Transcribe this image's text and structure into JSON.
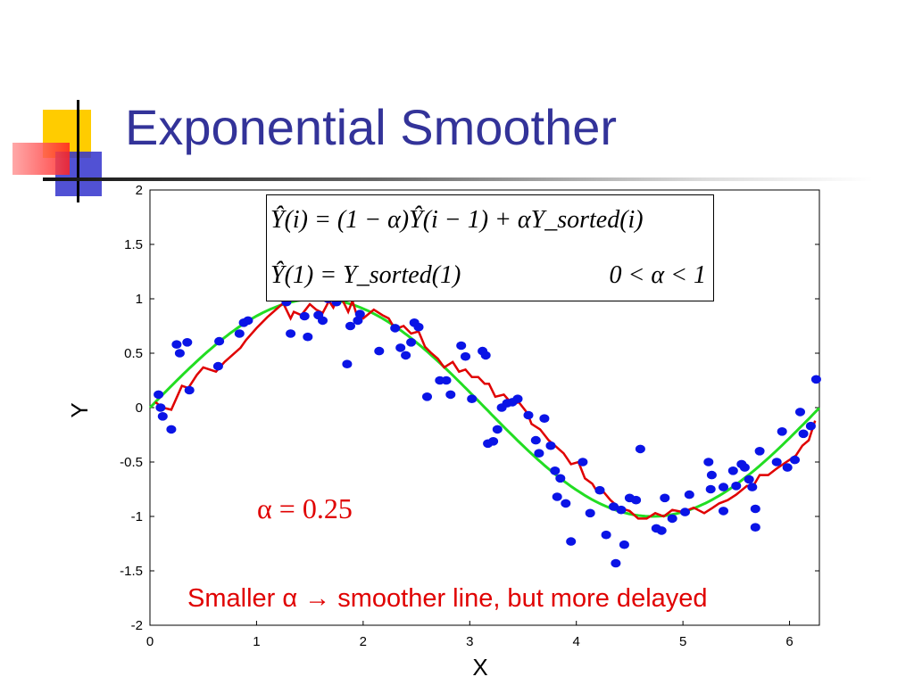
{
  "slide": {
    "title": "Exponential Smoother",
    "formula_line1": "Ŷ(i) = (1 − α)Ŷ(i − 1) + αY_sorted(i)",
    "formula_line2": "Ŷ(1) = Y_sorted(1)",
    "formula_constraint": "0 < α < 1",
    "alpha_label": "α = 0.25",
    "caption": "Smaller α → smoother line, but more delayed"
  },
  "colors": {
    "title": "#333399",
    "scatter": "#0a14e6",
    "smoothed": "#e00000",
    "true_curve": "#22dd22",
    "annotation": "#e00000"
  },
  "chart_data": {
    "type": "scatter",
    "xlabel": "X",
    "ylabel": "Y",
    "xlim": [
      0,
      6.28
    ],
    "ylim": [
      -2,
      2
    ],
    "xticks": [
      "0",
      "1",
      "2",
      "3",
      "4",
      "5",
      "6"
    ],
    "yticks": [
      "-2",
      "-1.5",
      "-1",
      "-0.5",
      "0",
      "0.5",
      "1",
      "1.5",
      "2"
    ],
    "grid": false,
    "series": [
      {
        "type": "scatter",
        "color": "#0a14e6",
        "x": [
          0.08,
          0.1,
          0.12,
          0.2,
          0.25,
          0.28,
          0.35,
          0.37,
          0.65,
          0.64,
          0.84,
          0.88,
          0.92,
          1.28,
          1.32,
          1.45,
          1.48,
          1.58,
          1.62,
          1.67,
          1.75,
          1.85,
          1.88,
          1.92,
          1.95,
          1.97,
          2.15,
          2.3,
          2.35,
          2.4,
          2.45,
          2.48,
          2.52,
          2.6,
          2.72,
          2.78,
          2.82,
          2.92,
          2.96,
          3.02,
          3.12,
          3.15,
          3.17,
          3.22,
          3.26,
          3.3,
          3.35,
          3.4,
          3.45,
          3.55,
          3.62,
          3.65,
          3.7,
          3.76,
          3.82,
          3.85,
          3.9,
          3.95,
          4.06,
          4.13,
          4.22,
          4.28,
          4.35,
          4.37,
          4.42,
          4.45,
          4.5,
          4.56,
          4.75,
          4.8,
          5.02,
          5.24,
          5.26,
          5.27,
          5.38,
          5.5,
          5.55,
          5.58,
          5.62,
          5.65,
          5.68,
          5.72,
          5.88,
          5.93,
          5.98,
          6.05,
          6.1,
          6.13,
          6.2,
          6.25
        ],
        "y": [
          0.12,
          0.0,
          -0.08,
          -0.2,
          0.58,
          0.5,
          0.6,
          0.16,
          0.61,
          0.38,
          0.68,
          0.78,
          0.8,
          0.97,
          0.68,
          0.84,
          0.65,
          0.85,
          0.8,
          1.0,
          0.97,
          0.4,
          0.75,
          1.05,
          0.8,
          0.86,
          0.52,
          0.73,
          0.55,
          0.48,
          0.6,
          0.78,
          0.74,
          0.1,
          0.25,
          0.25,
          0.12,
          0.57,
          0.47,
          0.08,
          0.52,
          0.48,
          -0.33,
          -0.31,
          -0.2,
          0.0,
          0.04,
          0.05,
          0.08,
          -0.07,
          -0.3,
          -0.42,
          -0.1,
          -0.35,
          -0.82,
          -0.65,
          -0.88,
          -1.23,
          -0.5,
          -0.97,
          -0.76,
          -1.17,
          -0.91,
          -1.43,
          -0.94,
          -1.26,
          -0.83,
          -0.85,
          -1.11,
          -1.13,
          -0.96,
          -0.5,
          -0.75,
          -0.62,
          -0.73,
          -0.72,
          -0.52,
          -0.55,
          -0.66,
          -0.73,
          -0.93,
          -0.4,
          -0.5,
          -0.22,
          -0.55,
          -0.48,
          -0.04,
          -0.24,
          -0.17,
          0.26
        ],
        "extra_x": [
          3.8,
          4.6,
          4.83,
          4.9,
          5.06,
          5.38,
          5.47,
          5.68
        ],
        "extra_y": [
          -0.58,
          -0.38,
          -0.83,
          -1.02,
          -0.8,
          -0.95,
          -0.58,
          -1.1
        ]
      },
      {
        "type": "line",
        "color": "#e00000",
        "x": [
          0.05,
          0.12,
          0.2,
          0.3,
          0.36,
          0.44,
          0.5,
          0.62,
          0.7,
          0.85,
          0.9,
          1.0,
          1.1,
          1.25,
          1.32,
          1.35,
          1.42,
          1.5,
          1.56,
          1.62,
          1.68,
          1.72,
          1.75,
          1.8,
          1.86,
          1.9,
          1.94,
          2.0,
          2.1,
          2.18,
          2.24,
          2.3,
          2.38,
          2.45,
          2.52,
          2.58,
          2.64,
          2.7,
          2.76,
          2.84,
          2.9,
          2.96,
          3.02,
          3.08,
          3.14,
          3.18,
          3.24,
          3.32,
          3.4,
          3.46,
          3.54,
          3.58,
          3.66,
          3.74,
          3.8,
          3.88,
          3.95,
          4.02,
          4.08,
          4.15,
          4.2,
          4.26,
          4.32,
          4.4,
          4.5,
          4.58,
          4.66,
          4.74,
          4.82,
          4.9,
          5.0,
          5.1,
          5.2,
          5.28,
          5.34,
          5.42,
          5.5,
          5.6,
          5.66,
          5.72,
          5.8,
          5.88,
          5.94,
          6.0,
          6.06,
          6.12,
          6.18,
          6.24
        ],
        "y": [
          0.05,
          0.0,
          -0.02,
          0.2,
          0.18,
          0.3,
          0.37,
          0.33,
          0.42,
          0.55,
          0.62,
          0.73,
          0.83,
          0.96,
          0.82,
          0.88,
          0.85,
          0.95,
          0.9,
          0.87,
          0.98,
          0.92,
          0.98,
          1.0,
          0.88,
          0.98,
          0.85,
          0.82,
          0.9,
          0.85,
          0.82,
          0.72,
          0.75,
          0.68,
          0.7,
          0.56,
          0.5,
          0.45,
          0.37,
          0.42,
          0.33,
          0.35,
          0.28,
          0.28,
          0.22,
          0.22,
          0.1,
          0.12,
          0.03,
          0.05,
          -0.05,
          -0.15,
          -0.2,
          -0.3,
          -0.35,
          -0.42,
          -0.52,
          -0.5,
          -0.65,
          -0.7,
          -0.78,
          -0.78,
          -0.85,
          -0.92,
          -0.95,
          -1.02,
          -1.02,
          -0.97,
          -1.0,
          -0.94,
          -0.96,
          -0.92,
          -0.97,
          -0.92,
          -0.88,
          -0.85,
          -0.8,
          -0.72,
          -0.72,
          -0.62,
          -0.62,
          -0.56,
          -0.52,
          -0.48,
          -0.44,
          -0.35,
          -0.3,
          -0.12
        ]
      },
      {
        "type": "line",
        "color": "#22dd22",
        "function": "sin(x)"
      }
    ]
  }
}
